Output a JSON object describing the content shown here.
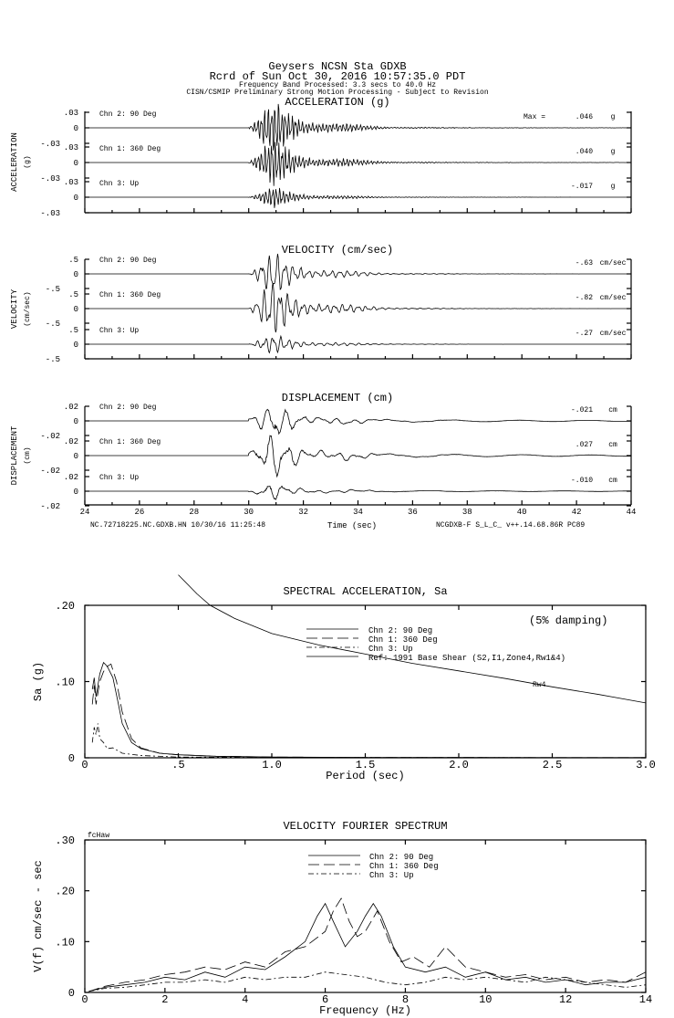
{
  "header": {
    "station": "Geysers     NCSN Sta GDXB",
    "record": "Rcrd of Sun Oct 30, 2016 10:57:35.0 PDT",
    "band": "Frequency Band Processed: 3.3 secs to 40.0 Hz",
    "note": "CISN/CSMIP Preliminary Strong Motion Processing - Subject to Revision"
  },
  "time_panels": [
    {
      "title": "ACCELERATION (g)",
      "ylabel": "ACCELERATION",
      "yunit": "(g)",
      "tick_pos": ".03",
      "tick_zero": "0",
      "tick_neg": "-.03",
      "unit": "g",
      "channels": [
        {
          "name": "Chn 2: 90 Deg",
          "prefix": "Max =",
          "max": ".046"
        },
        {
          "name": "Chn 1: 360 Deg",
          "prefix": "",
          "max": ".040"
        },
        {
          "name": "Chn 3: Up",
          "prefix": "",
          "max": "-.017"
        }
      ]
    },
    {
      "title": "VELOCITY (cm/sec)",
      "ylabel": "VELOCITY",
      "yunit": "(cm/sec)",
      "tick_pos": ".5",
      "tick_zero": "0",
      "tick_neg": "-.5",
      "unit": "cm/sec",
      "channels": [
        {
          "name": "Chn 2: 90 Deg",
          "prefix": "",
          "max": "-.63"
        },
        {
          "name": "Chn 1: 360 Deg",
          "prefix": "",
          "max": "-.82"
        },
        {
          "name": "Chn 3: Up",
          "prefix": "",
          "max": "-.27"
        }
      ]
    },
    {
      "title": "DISPLACEMENT (cm)",
      "ylabel": "DISPLACEMENT",
      "yunit": "(cm)",
      "tick_pos": ".02",
      "tick_zero": "0",
      "tick_neg": "-.02",
      "unit": "cm",
      "channels": [
        {
          "name": "Chn 2: 90 Deg",
          "prefix": "",
          "max": "-.021"
        },
        {
          "name": "Chn 1: 360 Deg",
          "prefix": "",
          "max": ".027"
        },
        {
          "name": "Chn 3: Up",
          "prefix": "",
          "max": "-.010"
        }
      ]
    }
  ],
  "time_axis": {
    "label": "Time (sec)",
    "ticks": [
      "24",
      "26",
      "28",
      "30",
      "32",
      "34",
      "36",
      "38",
      "40",
      "42",
      "44"
    ],
    "footer_left": "NC.72718225.NC.GDXB.HN 10/30/16 11:25:48",
    "footer_right": "NCGDXB-F  S_L_C_  v++.14.68.86R PC89"
  },
  "chart_data": [
    {
      "type": "line",
      "title": "SPECTRAL ACCELERATION, Sa",
      "xlabel": "Period (sec)",
      "ylabel": "Sa (g)",
      "xlim": [
        0,
        3.0
      ],
      "ylim": [
        0,
        0.2
      ],
      "xticks": [
        "0",
        ".5",
        "1.0",
        "1.5",
        "2.0",
        "2.5",
        "3.0"
      ],
      "yticks": [
        "0",
        ".10",
        ".20"
      ],
      "annotation": "(5% damping)",
      "curve_label": "Rw4",
      "legend": [
        "Chn 2: 90 Deg",
        "Chn 1: 360 Deg",
        "Chn 3: Up",
        "Ref: 1991 Base Shear (S2,I1,Zone4,Rw1&4)"
      ],
      "series": [
        {
          "name": "Chn 2: 90 Deg",
          "style": "solid",
          "x": [
            0.04,
            0.05,
            0.06,
            0.08,
            0.1,
            0.12,
            0.15,
            0.18,
            0.2,
            0.25,
            0.3,
            0.4,
            0.5,
            0.7,
            1.0,
            1.5,
            2,
            3
          ],
          "y": [
            0.09,
            0.105,
            0.08,
            0.11,
            0.125,
            0.12,
            0.105,
            0.07,
            0.045,
            0.02,
            0.012,
            0.006,
            0.004,
            0.002,
            0.001,
            0.0005,
            0.0003,
            0.0002
          ]
        },
        {
          "name": "Chn 1: 360 Deg",
          "style": "dash",
          "x": [
            0.04,
            0.05,
            0.06,
            0.08,
            0.1,
            0.12,
            0.14,
            0.17,
            0.2,
            0.25,
            0.3,
            0.4,
            0.5,
            0.7,
            1.0,
            1.5,
            2,
            3
          ],
          "y": [
            0.07,
            0.095,
            0.07,
            0.1,
            0.113,
            0.12,
            0.123,
            0.1,
            0.06,
            0.025,
            0.013,
            0.006,
            0.004,
            0.002,
            0.001,
            0.0005,
            0.0003,
            0.0002
          ]
        },
        {
          "name": "Chn 3: Up",
          "style": "dashdot",
          "x": [
            0.04,
            0.05,
            0.06,
            0.07,
            0.08,
            0.1,
            0.12,
            0.15,
            0.2,
            0.3,
            0.5,
            1.0,
            2,
            3
          ],
          "y": [
            0.02,
            0.04,
            0.03,
            0.045,
            0.025,
            0.02,
            0.012,
            0.013,
            0.006,
            0.003,
            0.001,
            0.0005,
            0.0002,
            0.0001
          ]
        },
        {
          "name": "Ref: 1991 Base Shear (S2,I1,Zone4,Rw1&4)",
          "style": "solid",
          "x": [
            0.5,
            0.6,
            0.67,
            0.8,
            1.0,
            1.25,
            1.5,
            1.75,
            2.0,
            2.25,
            2.5,
            2.75,
            3.0
          ],
          "y": [
            0.24,
            0.215,
            0.2,
            0.183,
            0.163,
            0.148,
            0.136,
            0.124,
            0.114,
            0.104,
            0.093,
            0.083,
            0.072
          ]
        }
      ]
    },
    {
      "type": "line",
      "title": "VELOCITY FOURIER SPECTRUM",
      "xlabel": "Frequency (Hz)",
      "ylabel": "V(f)   cm/sec - sec",
      "xlim": [
        0,
        14
      ],
      "ylim": [
        0,
        0.3
      ],
      "xticks": [
        "0",
        "2",
        "4",
        "6",
        "8",
        "10",
        "12",
        "14"
      ],
      "yticks": [
        "0",
        ".10",
        ".20",
        ".30"
      ],
      "corner_label": "fcHaw",
      "legend": [
        "Chn 2: 90 Deg",
        "Chn 1: 360 Deg",
        "Chn 3: Up"
      ],
      "series": [
        {
          "name": "Chn 2: 90 Deg",
          "style": "solid",
          "x": [
            0.1,
            0.5,
            1,
            1.5,
            2,
            2.5,
            3,
            3.5,
            4,
            4.5,
            5,
            5.5,
            5.8,
            6,
            6.2,
            6.5,
            6.8,
            7,
            7.2,
            7.4,
            7.7,
            8,
            8.5,
            9,
            9.5,
            10,
            10.5,
            11,
            11.5,
            12,
            12.5,
            13,
            13.5,
            14
          ],
          "y": [
            0.002,
            0.01,
            0.015,
            0.02,
            0.03,
            0.025,
            0.04,
            0.03,
            0.05,
            0.045,
            0.07,
            0.1,
            0.15,
            0.175,
            0.14,
            0.09,
            0.12,
            0.15,
            0.175,
            0.15,
            0.09,
            0.05,
            0.04,
            0.05,
            0.03,
            0.04,
            0.025,
            0.03,
            0.02,
            0.025,
            0.015,
            0.02,
            0.02,
            0.03
          ]
        },
        {
          "name": "Chn 1: 360 Deg",
          "style": "dash",
          "x": [
            0.1,
            0.5,
            1,
            1.5,
            2,
            2.5,
            3,
            3.5,
            4,
            4.5,
            5,
            5.5,
            6,
            6.2,
            6.4,
            6.6,
            6.8,
            7,
            7.3,
            7.6,
            7.9,
            8.2,
            8.6,
            9,
            9.5,
            10,
            10.5,
            11,
            11.5,
            12,
            12.5,
            13,
            13.5,
            14
          ],
          "y": [
            0.002,
            0.012,
            0.02,
            0.025,
            0.035,
            0.04,
            0.05,
            0.045,
            0.06,
            0.05,
            0.08,
            0.09,
            0.12,
            0.16,
            0.185,
            0.14,
            0.11,
            0.12,
            0.16,
            0.1,
            0.06,
            0.07,
            0.05,
            0.09,
            0.05,
            0.04,
            0.03,
            0.035,
            0.025,
            0.03,
            0.02,
            0.025,
            0.02,
            0.04
          ]
        },
        {
          "name": "Chn 3: Up",
          "style": "dashdot",
          "x": [
            0.1,
            0.5,
            1,
            1.5,
            2,
            2.5,
            3,
            3.5,
            4,
            4.5,
            5,
            5.5,
            6,
            6.5,
            7,
            7.5,
            8,
            8.5,
            9,
            9.5,
            10,
            10.5,
            11,
            11.5,
            12,
            12.5,
            13,
            13.5,
            14
          ],
          "y": [
            0.002,
            0.008,
            0.01,
            0.015,
            0.02,
            0.02,
            0.025,
            0.02,
            0.03,
            0.025,
            0.03,
            0.03,
            0.04,
            0.035,
            0.03,
            0.02,
            0.015,
            0.02,
            0.03,
            0.025,
            0.03,
            0.025,
            0.02,
            0.03,
            0.025,
            0.02,
            0.015,
            0.01,
            0.015
          ]
        }
      ]
    }
  ]
}
